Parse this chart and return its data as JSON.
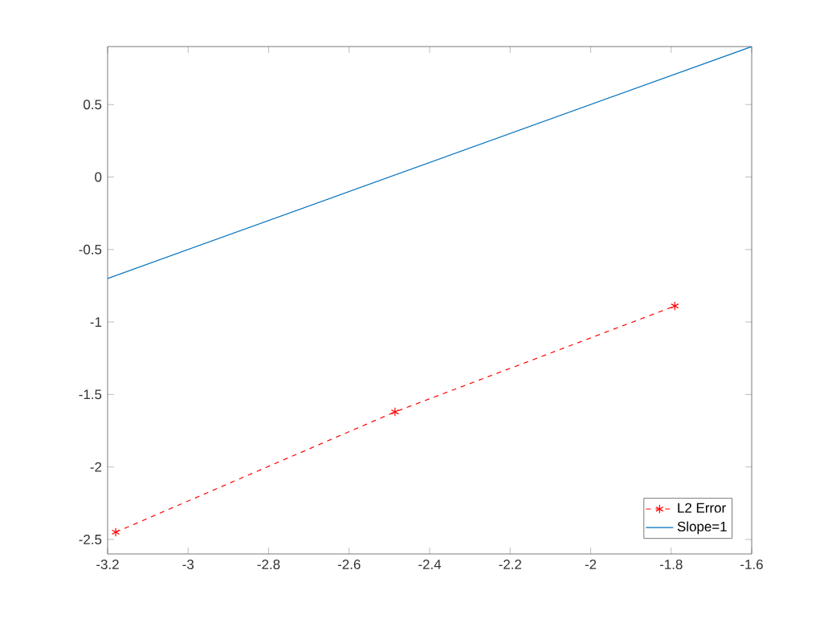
{
  "chart_data": {
    "type": "line",
    "xlim": [
      -3.2,
      -1.6
    ],
    "xticks": [
      -3.2,
      -3,
      -2.8,
      -2.6,
      -2.4,
      -2.2,
      -2,
      -1.8,
      -1.6
    ],
    "ylim": [
      -2.6,
      0.9
    ],
    "yticks": [
      -2.5,
      -2,
      -1.5,
      -1,
      -0.5,
      0,
      0.5
    ],
    "legend": "bottom right",
    "grid": false,
    "series": [
      {
        "name": "L2 Error",
        "color": "#ff0000",
        "marker": "cross",
        "line_style": "dashed",
        "x": [
          -3.18,
          -2.486,
          -1.791
        ],
        "values": [
          -2.45,
          -1.62,
          -0.89
        ]
      },
      {
        "name": "Slope=1",
        "color": "#0072bd",
        "marker": "none",
        "line_style": "solid",
        "x": [
          -3.2,
          -1.6
        ],
        "values": [
          -0.7,
          0.9
        ]
      }
    ]
  }
}
